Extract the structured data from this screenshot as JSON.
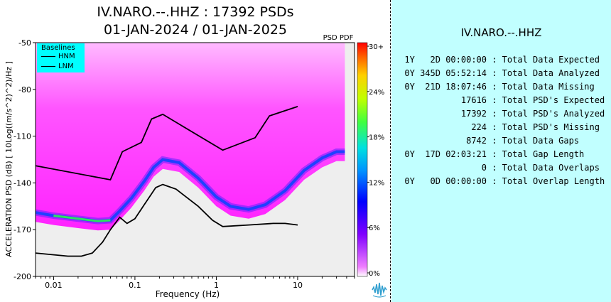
{
  "header": {
    "title_line1": "IV.NARO.--.HHZ : 17392 PSDs",
    "title_line2": "01-JAN-2024 / 01-JAN-2025"
  },
  "colors": {
    "psd_band": "#ff33ff",
    "psd_band_light": "#ff99ff",
    "mode_blue": "#2040ff",
    "mode_green": "#30e060",
    "noise_floor": "#eeeeee",
    "legend_bg": "#00ffff",
    "right_panel_bg": "#c1ffff"
  },
  "legend": {
    "title": "Baselines",
    "items": [
      "HNM",
      "LNM"
    ]
  },
  "colorbar": {
    "label": "PSD PDF",
    "ticks": [
      "30+",
      "24%",
      "18%",
      "12%",
      "6%",
      "0%"
    ]
  },
  "stats": {
    "station": "IV.NARO.--.HHZ",
    "rows": [
      {
        "value": "1Y   2D 00:00:00",
        "label": ": Total Data Expected"
      },
      {
        "value": "0Y 345D 05:52:14",
        "label": ": Total Data Analyzed"
      },
      {
        "value": "0Y  21D 18:07:46",
        "label": ": Total Data Missing"
      },
      {
        "value": "17616",
        "label": ": Total PSD's Expected"
      },
      {
        "value": "17392",
        "label": ": Total PSD's Analyzed"
      },
      {
        "value": "224",
        "label": ": Total PSD's Missing"
      },
      {
        "value": "8742",
        "label": ": Total Data Gaps"
      },
      {
        "value": "0Y  17D 02:03:21",
        "label": ": Total Gap Length"
      },
      {
        "value": "0",
        "label": ": Total Data Overlaps"
      },
      {
        "value": "0Y   0D 00:00:00",
        "label": ": Total Overlap Length"
      }
    ]
  },
  "chart_data": {
    "type": "heatmap",
    "title": "IV.NARO.--.HHZ : 17392 PSDs",
    "subtitle": "01-JAN-2024 / 01-JAN-2025",
    "xlabel": "Frequency (Hz)",
    "ylabel": "ACCELERATION PSD (dB) [ 10Log((m/s^2)^2)/Hz ]",
    "xscale": "log",
    "xlim": [
      0.006,
      50
    ],
    "ylim": [
      -200,
      -50
    ],
    "xticks": [
      {
        "v": 0.01,
        "label": "0.01"
      },
      {
        "v": 0.1,
        "label": "0.1"
      },
      {
        "v": 1,
        "label": "1"
      },
      {
        "v": 10,
        "label": "10"
      }
    ],
    "yticks": [
      -50,
      -80,
      -110,
      -140,
      -170,
      -200
    ],
    "hnm": [
      [
        0.006,
        -129
      ],
      [
        0.05,
        -138
      ],
      [
        0.07,
        -120
      ],
      [
        0.12,
        -114
      ],
      [
        0.16,
        -99
      ],
      [
        0.22,
        -96
      ],
      [
        1.2,
        -119
      ],
      [
        3,
        -111
      ],
      [
        4.5,
        -97
      ],
      [
        10,
        -91
      ]
    ],
    "lnm": [
      [
        0.006,
        -185
      ],
      [
        0.015,
        -187
      ],
      [
        0.022,
        -187
      ],
      [
        0.03,
        -185
      ],
      [
        0.04,
        -178
      ],
      [
        0.05,
        -170
      ],
      [
        0.065,
        -162
      ],
      [
        0.08,
        -166
      ],
      [
        0.1,
        -163
      ],
      [
        0.13,
        -154
      ],
      [
        0.18,
        -143
      ],
      [
        0.22,
        -141
      ],
      [
        0.32,
        -144
      ],
      [
        0.6,
        -155
      ],
      [
        0.9,
        -164
      ],
      [
        1.2,
        -168
      ],
      [
        2.5,
        -167
      ],
      [
        5,
        -166
      ],
      [
        7,
        -166
      ],
      [
        10,
        -167
      ]
    ],
    "pdf_mode": [
      [
        0.006,
        -159
      ],
      [
        0.01,
        -161
      ],
      [
        0.02,
        -163
      ],
      [
        0.035,
        -164.5
      ],
      [
        0.05,
        -164
      ],
      [
        0.065,
        -158
      ],
      [
        0.09,
        -150
      ],
      [
        0.13,
        -139
      ],
      [
        0.17,
        -130
      ],
      [
        0.22,
        -125
      ],
      [
        0.35,
        -127
      ],
      [
        0.6,
        -137
      ],
      [
        1,
        -149
      ],
      [
        1.5,
        -155
      ],
      [
        2.5,
        -157
      ],
      [
        4,
        -154
      ],
      [
        7,
        -145
      ],
      [
        12,
        -132
      ],
      [
        20,
        -124
      ],
      [
        30,
        -120
      ],
      [
        38,
        -120
      ]
    ],
    "colorbar_range_percent": [
      0,
      30
    ]
  }
}
